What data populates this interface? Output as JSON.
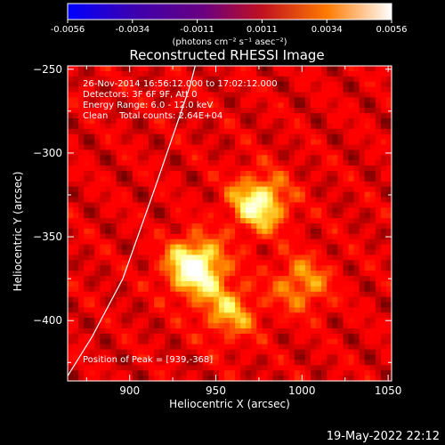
{
  "chart_data": {
    "type": "heatmap",
    "title": "Reconstructed RHESSI Image",
    "xlabel": "Heliocentric X (arcsec)",
    "ylabel": "Heliocentric Y (arcsec)",
    "xlim": [
      864,
      1052
    ],
    "ylim": [
      -436,
      -248
    ],
    "x_ticks": [
      900,
      950,
      1000,
      1050
    ],
    "y_ticks": [
      -250,
      -300,
      -350,
      -400
    ],
    "colorbar": {
      "range": [
        -0.0056,
        0.0056
      ],
      "ticks": [
        "-0.0056",
        "-0.0034",
        "-0.0011",
        "0.0011",
        "0.0034",
        "0.0056"
      ],
      "unit": "(photons cm⁻² s⁻¹ asec⁻²)",
      "colormap": "hot"
    },
    "annotations": {
      "time": "26-Nov-2014 16:56:12.000 to 17:02:12.000",
      "detectors": "Detectors: 3F 6F 9F, Att 0",
      "energy": "Energy Range: 6.0 - 12.0 keV",
      "method": "Clean    Total counts: 2.64E+04",
      "peak": "Position of Peak = [939,-368]"
    },
    "sources": [
      {
        "x": 938,
        "y": -368,
        "value": 0.0056
      },
      {
        "x": 975,
        "y": -330,
        "value": 0.0047
      },
      {
        "x": 958,
        "y": -395,
        "value": 0.003
      },
      {
        "x": 1000,
        "y": -378,
        "value": 0.0028
      }
    ],
    "limb": [
      [
        864,
        -433
      ],
      [
        878,
        -410
      ],
      [
        896,
        -375
      ],
      [
        915,
        -320
      ],
      [
        935,
        -260
      ],
      [
        938,
        -248
      ]
    ]
  },
  "footer": {
    "date": "19-May-2022 22:12"
  },
  "colors": {
    "background": "#000000",
    "text": "#ffffff"
  }
}
